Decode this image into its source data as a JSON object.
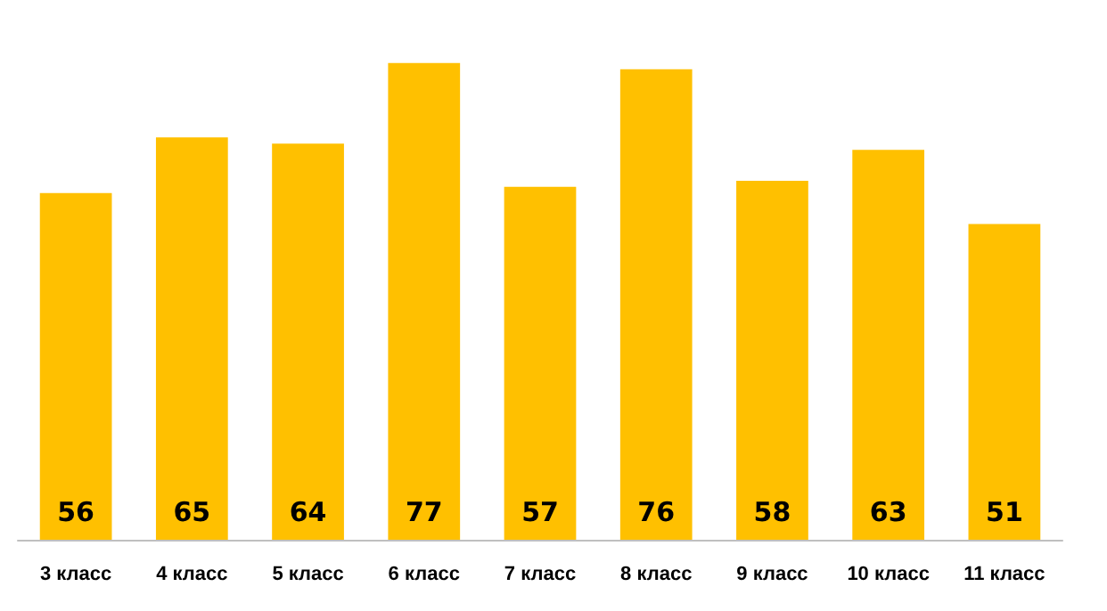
{
  "chart_data": {
    "type": "bar",
    "categories": [
      "3 класс",
      "4 класс",
      "5 класс",
      "6 класс",
      "7 класс",
      "8 класс",
      "9 класс",
      "10 класс",
      "11 класс"
    ],
    "values": [
      56,
      65,
      64,
      77,
      57,
      76,
      58,
      63,
      51
    ],
    "color": "#ffc000",
    "data_labels": true
  }
}
